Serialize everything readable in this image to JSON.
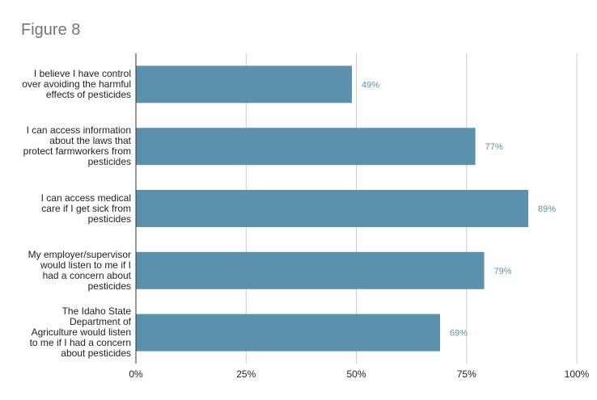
{
  "chart_data": {
    "type": "bar",
    "orientation": "horizontal",
    "title": "Figure 8",
    "categories": [
      "I believe I have control over avoiding the harmful effects of pesticides",
      "I can access information about the laws that protect farmworkers from pesticides",
      "I can access medical care if I get sick from pesticides",
      "My employer/supervisor would listen to me if I had a concern about pesticides",
      "The Idaho State Department of Agriculture would listen to me if I had a concern about pesticides"
    ],
    "category_lines": [
      [
        "I believe I have control",
        "over avoiding the harmful",
        "effects of pesticides"
      ],
      [
        "I can access information",
        "about the laws that",
        "protect farmworkers from",
        "pesticides"
      ],
      [
        "I can access medical",
        "care if I get sick from",
        "pesticides"
      ],
      [
        "My employer/supervisor",
        "would listen to me if I",
        "had a concern about",
        "pesticides"
      ],
      [
        "The Idaho State",
        "Department of",
        "Agriculture would listen",
        "to me if I had a concern",
        "about pesticides"
      ]
    ],
    "values": [
      49,
      77,
      89,
      79,
      69
    ],
    "data_labels": [
      "49%",
      "77%",
      "89%",
      "79%",
      "69%"
    ],
    "xlim": [
      0,
      100
    ],
    "ticks": [
      0,
      25,
      50,
      75,
      100
    ],
    "tick_labels": [
      "0%",
      "25%",
      "50%",
      "75%",
      "100%"
    ],
    "xlabel": "",
    "ylabel": "",
    "grid": "vertical",
    "legend": "none",
    "colors": {
      "bar": "#5b91ad",
      "label": "#5b91ad",
      "grid": "#cccccc",
      "axis": "#333333"
    }
  }
}
